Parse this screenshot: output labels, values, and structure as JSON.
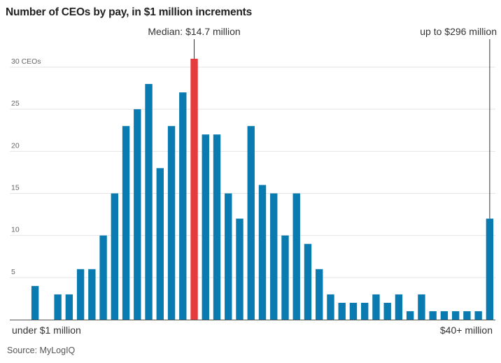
{
  "title": "Number of CEOs by pay, in $1 million increments",
  "source": "Source: MyLogIQ",
  "colors": {
    "bar": "#0a7bb0",
    "highlight": "#e63b3e",
    "grid": "#e4e4e4",
    "axis": "#666666"
  },
  "chart_data": {
    "type": "bar",
    "title": "Number of CEOs by pay, in $1 million increments",
    "xlabel": "",
    "ylabel": "",
    "ylim": [
      0,
      30
    ],
    "yticks": [
      0,
      5,
      10,
      15,
      20,
      25,
      30
    ],
    "ytick_labels": [
      "",
      "5",
      "10",
      "15",
      "20",
      "25",
      "30 CEOs"
    ],
    "xtick_labels": {
      "first": "under $1 million",
      "last": "$40+ million"
    },
    "values": [
      4,
      0,
      3,
      3,
      6,
      6,
      10,
      15,
      23,
      25,
      28,
      18,
      23,
      27,
      31,
      22,
      22,
      15,
      12,
      23,
      16,
      15,
      10,
      15,
      9,
      6,
      3,
      2,
      2,
      2,
      3,
      2,
      3,
      1,
      3,
      1,
      1,
      1,
      1,
      1,
      12
    ],
    "highlight_index": 14,
    "annotations": {
      "median": {
        "text": "Median: $14.7 million",
        "bar_index": 14
      },
      "max": {
        "text": "up to $296 million",
        "bar_index": 40
      }
    },
    "grid": true
  }
}
